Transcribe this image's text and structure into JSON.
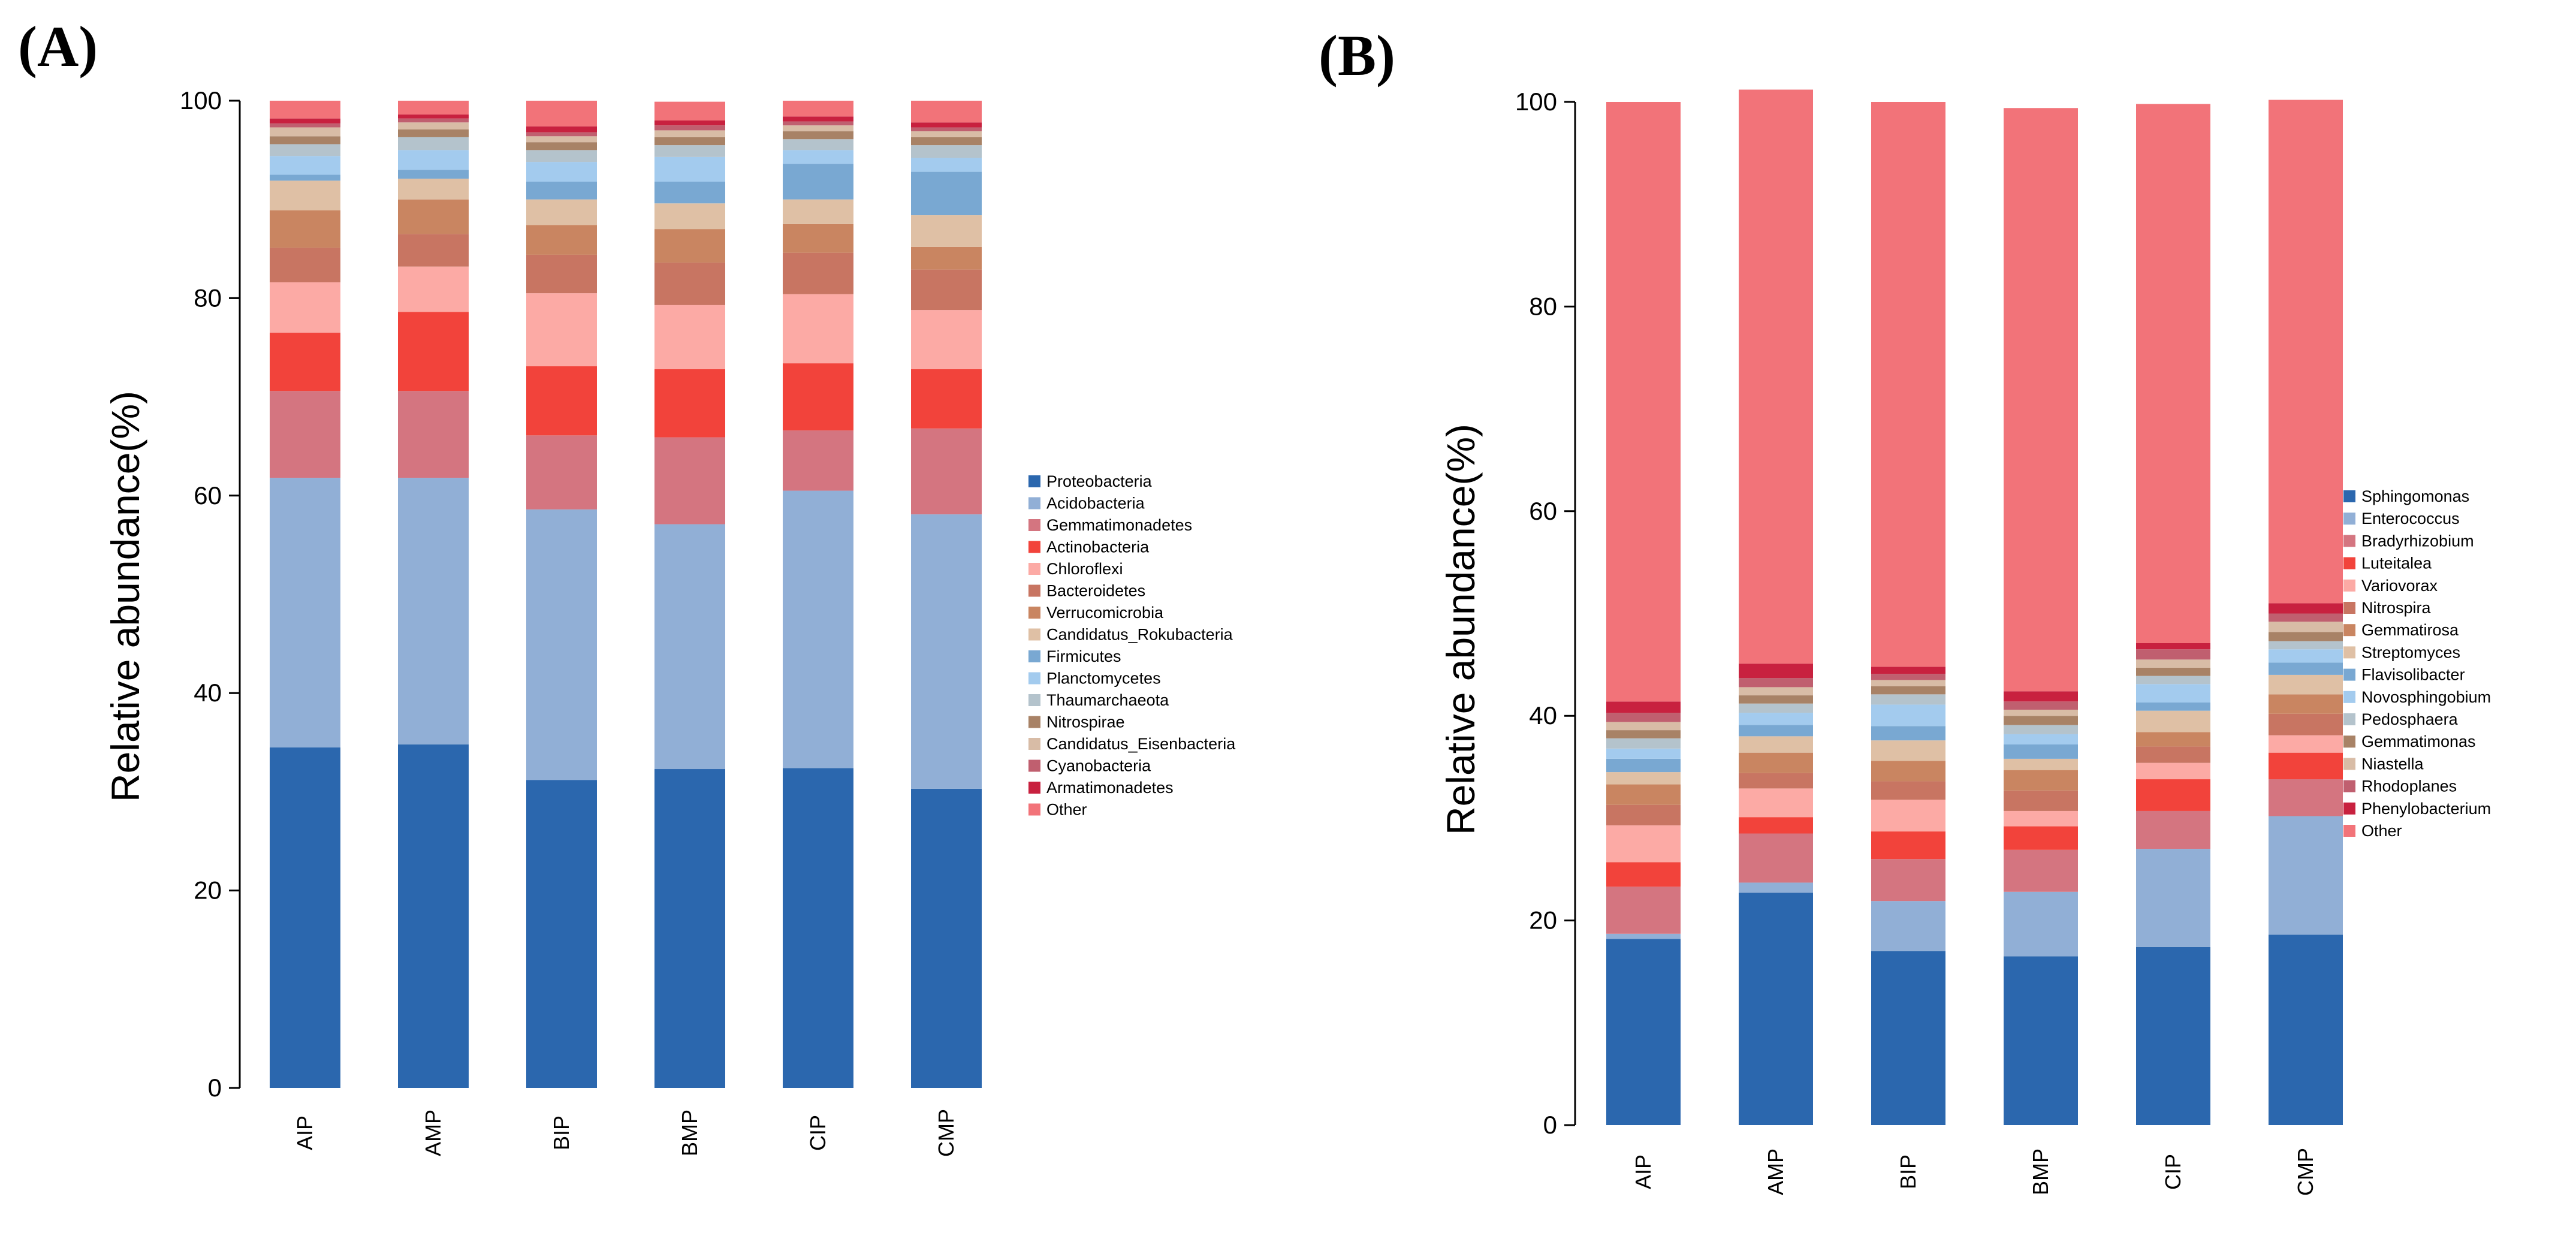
{
  "chart_data": [
    {
      "panel_label": "(A)",
      "type": "bar",
      "stacked": true,
      "ylabel": "Relative abundance(%)",
      "xlabel": "",
      "ylim": [
        0,
        100
      ],
      "yticks": [
        "0",
        "20",
        "40",
        "60",
        "80",
        "100"
      ],
      "categories": [
        "AIP",
        "AMP",
        "BIP",
        "BMP",
        "CIP",
        "CMP"
      ],
      "legend_position": "right",
      "series": [
        {
          "name": "Proteobacteria",
          "color": "#2b67ae",
          "values": [
            34.5,
            34.8,
            31.2,
            32.3,
            32.4,
            30.3
          ]
        },
        {
          "name": "Acidobacteria",
          "color": "#91afd6",
          "values": [
            27.3,
            27.0,
            27.4,
            24.8,
            28.1,
            27.8
          ]
        },
        {
          "name": "Gemmatimonadetes",
          "color": "#d47580",
          "values": [
            8.8,
            8.8,
            7.5,
            8.8,
            6.1,
            8.7
          ]
        },
        {
          "name": "Actinobacteria",
          "color": "#f2433b",
          "values": [
            5.9,
            8.0,
            7.0,
            6.9,
            6.8,
            6.0
          ]
        },
        {
          "name": "Chloroflexi",
          "color": "#fcaaa5",
          "values": [
            5.1,
            4.6,
            7.4,
            6.5,
            7.0,
            6.0
          ]
        },
        {
          "name": "Bacteroidetes",
          "color": "#c87562",
          "values": [
            3.5,
            3.3,
            3.9,
            4.3,
            4.2,
            4.1
          ]
        },
        {
          "name": "Verrucomicrobia",
          "color": "#c98561",
          "values": [
            3.8,
            3.5,
            3.0,
            3.4,
            2.9,
            2.3
          ]
        },
        {
          "name": "Candidatus_Rokubacteria",
          "color": "#dfc0a5",
          "values": [
            3.0,
            2.1,
            2.6,
            2.6,
            2.5,
            3.2
          ]
        },
        {
          "name": "Firmicutes",
          "color": "#79a8d2",
          "values": [
            0.6,
            0.9,
            1.8,
            2.2,
            3.6,
            4.4
          ]
        },
        {
          "name": "Planctomycetes",
          "color": "#a3cbee",
          "values": [
            1.9,
            2.0,
            2.0,
            2.5,
            1.4,
            1.4
          ]
        },
        {
          "name": "Thaumarchaeota",
          "color": "#b4c3cc",
          "values": [
            1.2,
            1.3,
            1.2,
            1.2,
            1.1,
            1.3
          ]
        },
        {
          "name": "Nitrospirae",
          "color": "#a88266",
          "values": [
            0.8,
            0.8,
            0.8,
            0.8,
            0.8,
            0.8
          ]
        },
        {
          "name": "Candidatus_Eisenbacteria",
          "color": "#d8bca6",
          "values": [
            0.9,
            0.7,
            0.6,
            0.7,
            0.6,
            0.6
          ]
        },
        {
          "name": "Cyanobacteria",
          "color": "#c05f6f",
          "values": [
            0.4,
            0.4,
            0.4,
            0.5,
            0.4,
            0.4
          ]
        },
        {
          "name": "Armatimonadetes",
          "color": "#c8213f",
          "values": [
            0.5,
            0.4,
            0.6,
            0.5,
            0.5,
            0.5
          ]
        },
        {
          "name": "Other",
          "color": "#f27379",
          "values": [
            1.8,
            1.4,
            2.6,
            1.9,
            1.6,
            2.2
          ]
        }
      ]
    },
    {
      "panel_label": "(B)",
      "type": "bar",
      "stacked": true,
      "ylabel": "Relative abundance(%)",
      "xlabel": "",
      "ylim": [
        0,
        100
      ],
      "yticks": [
        "0",
        "20",
        "40",
        "60",
        "80",
        "100"
      ],
      "categories": [
        "AIP",
        "AMP",
        "BIP",
        "BMP",
        "CIP",
        "CMP"
      ],
      "legend_position": "right",
      "series": [
        {
          "name": "Sphingomonas",
          "color": "#2b67ae",
          "values": [
            18.2,
            22.7,
            17.0,
            16.5,
            17.4,
            18.6
          ]
        },
        {
          "name": "Enterococcus",
          "color": "#91afd6",
          "values": [
            0.5,
            1.0,
            4.9,
            6.3,
            9.6,
            11.6
          ]
        },
        {
          "name": "Bradyrhizobium",
          "color": "#d47580",
          "values": [
            4.6,
            4.8,
            4.1,
            4.1,
            3.7,
            3.6
          ]
        },
        {
          "name": "Luteitalea",
          "color": "#f2433b",
          "values": [
            2.4,
            1.6,
            2.7,
            2.3,
            3.1,
            2.6
          ]
        },
        {
          "name": "Variovorax",
          "color": "#fcaaa5",
          "values": [
            3.6,
            2.8,
            3.1,
            1.5,
            1.6,
            1.7
          ]
        },
        {
          "name": "Nitrospira",
          "color": "#c87562",
          "values": [
            2.0,
            1.5,
            1.8,
            2.0,
            1.6,
            2.1
          ]
        },
        {
          "name": "Gemmatirosa",
          "color": "#c98561",
          "values": [
            2.0,
            2.0,
            2.0,
            2.0,
            1.4,
            1.9
          ]
        },
        {
          "name": "Streptomyces",
          "color": "#dfc0a5",
          "values": [
            1.2,
            1.6,
            2.0,
            1.1,
            2.1,
            1.9
          ]
        },
        {
          "name": "Flavisolibacter",
          "color": "#79a8d2",
          "values": [
            1.3,
            1.1,
            1.4,
            1.4,
            0.8,
            1.2
          ]
        },
        {
          "name": "Novosphingobium",
          "color": "#a3cbee",
          "values": [
            1.0,
            1.2,
            2.1,
            1.0,
            1.8,
            1.3
          ]
        },
        {
          "name": "Pedosphaera",
          "color": "#b4c3cc",
          "values": [
            1.0,
            0.9,
            1.0,
            0.9,
            0.8,
            0.8
          ]
        },
        {
          "name": "Gemmatimonas",
          "color": "#a88266",
          "values": [
            0.8,
            0.8,
            0.8,
            0.9,
            0.8,
            0.9
          ]
        },
        {
          "name": "Niastella",
          "color": "#d8bca6",
          "values": [
            0.8,
            0.8,
            0.6,
            0.6,
            0.8,
            1.0
          ]
        },
        {
          "name": "Rhodoplanes",
          "color": "#c05f6f",
          "values": [
            0.9,
            0.9,
            0.6,
            0.8,
            1.0,
            0.8
          ]
        },
        {
          "name": "Phenylobacterium",
          "color": "#c8213f",
          "values": [
            1.1,
            1.4,
            0.7,
            1.0,
            0.6,
            1.0
          ]
        },
        {
          "name": "Other",
          "color": "#f27379",
          "values": [
            58.6,
            56.1,
            55.2,
            57.0,
            52.7,
            49.2
          ]
        }
      ]
    }
  ]
}
